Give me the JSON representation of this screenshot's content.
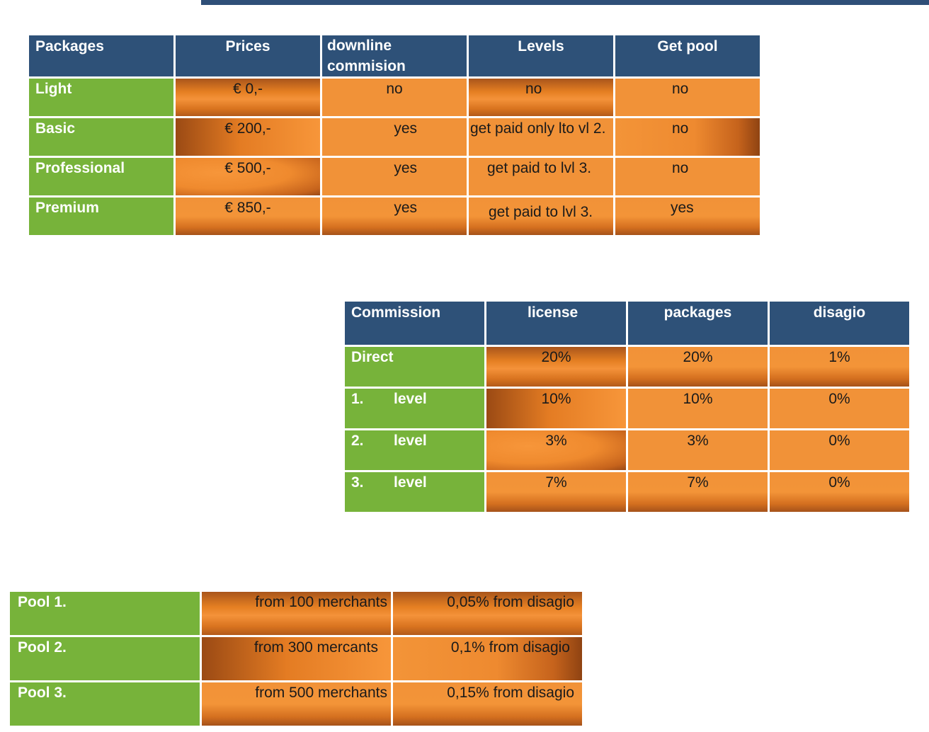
{
  "packages_table": {
    "headers": [
      "Packages",
      "Prices",
      "downline commision",
      "Levels",
      "Get pool"
    ],
    "rows": [
      {
        "name": "Light",
        "price": "€ 0,-",
        "downline": "no",
        "levels": "no",
        "pool": "no"
      },
      {
        "name": "Basic",
        "price": "€ 200,-",
        "downline": "yes",
        "levels": "get paid only lto vl 2.",
        "pool": "no"
      },
      {
        "name": "Professional",
        "price": "€ 500,-",
        "downline": "yes",
        "levels": "get paid to lvl 3.",
        "pool": "no"
      },
      {
        "name": "Premium",
        "price": "€ 850,-",
        "downline": "yes",
        "levels": "get paid to lvl 3.",
        "pool": "yes"
      }
    ]
  },
  "commission_table": {
    "headers": [
      "Commission",
      "license",
      "packages",
      "disagio"
    ],
    "rows": [
      {
        "num": "",
        "name": "Direct",
        "license": "20%",
        "packages": "20%",
        "disagio": "1%"
      },
      {
        "num": "1.",
        "name": "level",
        "license": "10%",
        "packages": "10%",
        "disagio": "0%"
      },
      {
        "num": "2.",
        "name": "level",
        "license": "3%",
        "packages": "3%",
        "disagio": "0%"
      },
      {
        "num": "3.",
        "name": "level",
        "license": "7%",
        "packages": "7%",
        "disagio": "0%"
      }
    ]
  },
  "pool_table": {
    "rows": [
      {
        "name": "Pool 1.",
        "merchants": "from 100 merchants",
        "share": "0,05% from disagio"
      },
      {
        "name": "Pool 2.",
        "merchants": "from 300 mercants",
        "share": "0,1% from disagio"
      },
      {
        "name": "Pool 3.",
        "merchants": "from 500 merchants",
        "share": "0,15% from disagio"
      }
    ]
  },
  "colors": {
    "header_blue": "#2e5178",
    "label_green": "#77b33a",
    "cell_orange": "#f19238",
    "top_bar": "#2f4f78"
  }
}
